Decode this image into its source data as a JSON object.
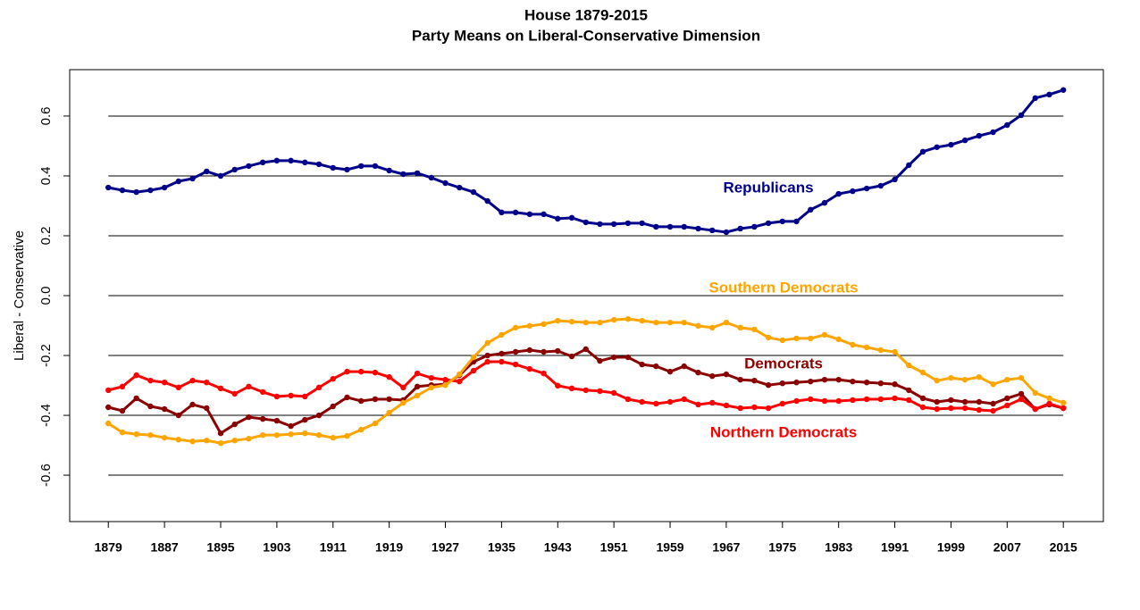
{
  "chart_data": {
    "type": "line",
    "title": "House 1879-2015",
    "subtitle": "Party Means on Liberal-Conservative Dimension",
    "ylabel": "Liberal - Conservative",
    "x": [
      1879,
      1881,
      1883,
      1885,
      1887,
      1889,
      1891,
      1893,
      1895,
      1897,
      1899,
      1901,
      1903,
      1905,
      1907,
      1909,
      1911,
      1913,
      1915,
      1917,
      1919,
      1921,
      1923,
      1925,
      1927,
      1929,
      1931,
      1933,
      1935,
      1937,
      1939,
      1941,
      1943,
      1945,
      1947,
      1949,
      1951,
      1953,
      1955,
      1957,
      1959,
      1961,
      1963,
      1965,
      1967,
      1969,
      1971,
      1973,
      1975,
      1977,
      1979,
      1981,
      1983,
      1985,
      1987,
      1989,
      1991,
      1993,
      1995,
      1997,
      1999,
      2001,
      2003,
      2005,
      2007,
      2009,
      2011,
      2013,
      2015
    ],
    "series": [
      {
        "name": "Republicans",
        "color": "#00008b",
        "values": [
          0.361,
          0.352,
          0.346,
          0.352,
          0.361,
          0.382,
          0.391,
          0.415,
          0.4,
          0.421,
          0.433,
          0.445,
          0.451,
          0.451,
          0.445,
          0.439,
          0.427,
          0.421,
          0.433,
          0.433,
          0.418,
          0.406,
          0.409,
          0.394,
          0.376,
          0.361,
          0.346,
          0.316,
          0.278,
          0.278,
          0.272,
          0.272,
          0.257,
          0.26,
          0.245,
          0.239,
          0.239,
          0.242,
          0.242,
          0.23,
          0.23,
          0.23,
          0.224,
          0.218,
          0.212,
          0.224,
          0.23,
          0.242,
          0.248,
          0.248,
          0.287,
          0.31,
          0.34,
          0.349,
          0.358,
          0.367,
          0.388,
          0.436,
          0.481,
          0.496,
          0.504,
          0.519,
          0.534,
          0.546,
          0.57,
          0.603,
          0.66,
          0.672,
          0.687
        ]
      },
      {
        "name": "Democrats",
        "color": "#8b0000",
        "values": [
          -0.373,
          -0.385,
          -0.343,
          -0.37,
          -0.379,
          -0.4,
          -0.364,
          -0.376,
          -0.46,
          -0.43,
          -0.406,
          -0.412,
          -0.418,
          -0.436,
          -0.415,
          -0.4,
          -0.37,
          -0.34,
          -0.352,
          -0.346,
          -0.346,
          -0.349,
          -0.304,
          -0.299,
          -0.296,
          -0.266,
          -0.221,
          -0.2,
          -0.194,
          -0.188,
          -0.182,
          -0.188,
          -0.185,
          -0.203,
          -0.179,
          -0.218,
          -0.206,
          -0.206,
          -0.23,
          -0.236,
          -0.254,
          -0.236,
          -0.257,
          -0.269,
          -0.263,
          -0.281,
          -0.284,
          -0.299,
          -0.293,
          -0.29,
          -0.287,
          -0.281,
          -0.281,
          -0.287,
          -0.29,
          -0.293,
          -0.296,
          -0.316,
          -0.343,
          -0.355,
          -0.349,
          -0.355,
          -0.355,
          -0.361,
          -0.343,
          -0.328,
          -0.379,
          -0.364,
          -0.376
        ]
      },
      {
        "name": "Northern Democrats",
        "color": "#ff0000",
        "values": [
          -0.316,
          -0.304,
          -0.266,
          -0.284,
          -0.29,
          -0.307,
          -0.284,
          -0.29,
          -0.31,
          -0.328,
          -0.304,
          -0.322,
          -0.337,
          -0.334,
          -0.337,
          -0.307,
          -0.278,
          -0.254,
          -0.254,
          -0.257,
          -0.272,
          -0.307,
          -0.26,
          -0.275,
          -0.281,
          -0.287,
          -0.251,
          -0.221,
          -0.221,
          -0.23,
          -0.245,
          -0.26,
          -0.301,
          -0.31,
          -0.316,
          -0.319,
          -0.325,
          -0.346,
          -0.355,
          -0.361,
          -0.355,
          -0.346,
          -0.364,
          -0.358,
          -0.367,
          -0.376,
          -0.373,
          -0.376,
          -0.361,
          -0.352,
          -0.346,
          -0.352,
          -0.352,
          -0.349,
          -0.346,
          -0.346,
          -0.343,
          -0.349,
          -0.373,
          -0.379,
          -0.376,
          -0.376,
          -0.382,
          -0.385,
          -0.367,
          -0.346,
          -0.379,
          -0.361,
          -0.376
        ]
      },
      {
        "name": "Southern Democrats",
        "color": "#ffa500",
        "values": [
          -0.427,
          -0.457,
          -0.463,
          -0.466,
          -0.475,
          -0.481,
          -0.487,
          -0.484,
          -0.493,
          -0.484,
          -0.478,
          -0.466,
          -0.466,
          -0.463,
          -0.46,
          -0.466,
          -0.475,
          -0.469,
          -0.448,
          -0.427,
          -0.391,
          -0.358,
          -0.334,
          -0.307,
          -0.299,
          -0.263,
          -0.206,
          -0.158,
          -0.131,
          -0.107,
          -0.101,
          -0.095,
          -0.084,
          -0.087,
          -0.09,
          -0.09,
          -0.081,
          -0.078,
          -0.084,
          -0.09,
          -0.09,
          -0.09,
          -0.101,
          -0.107,
          -0.09,
          -0.107,
          -0.113,
          -0.14,
          -0.149,
          -0.143,
          -0.143,
          -0.131,
          -0.146,
          -0.164,
          -0.173,
          -0.182,
          -0.188,
          -0.233,
          -0.257,
          -0.284,
          -0.275,
          -0.281,
          -0.272,
          -0.296,
          -0.281,
          -0.275,
          -0.325,
          -0.343,
          -0.358
        ]
      }
    ],
    "xlim": [
      1873.5,
      2020.7
    ],
    "xticks": [
      1879,
      1887,
      1895,
      1903,
      1911,
      1919,
      1927,
      1935,
      1943,
      1951,
      1959,
      1967,
      1975,
      1983,
      1991,
      1999,
      2007,
      2015
    ],
    "ylim": [
      -0.755,
      0.755
    ],
    "yticks": [
      -0.6,
      -0.4,
      -0.2,
      {
        "value": 0,
        "label": "0.0"
      },
      0.2,
      0.4,
      0.6
    ],
    "grid": true
  }
}
